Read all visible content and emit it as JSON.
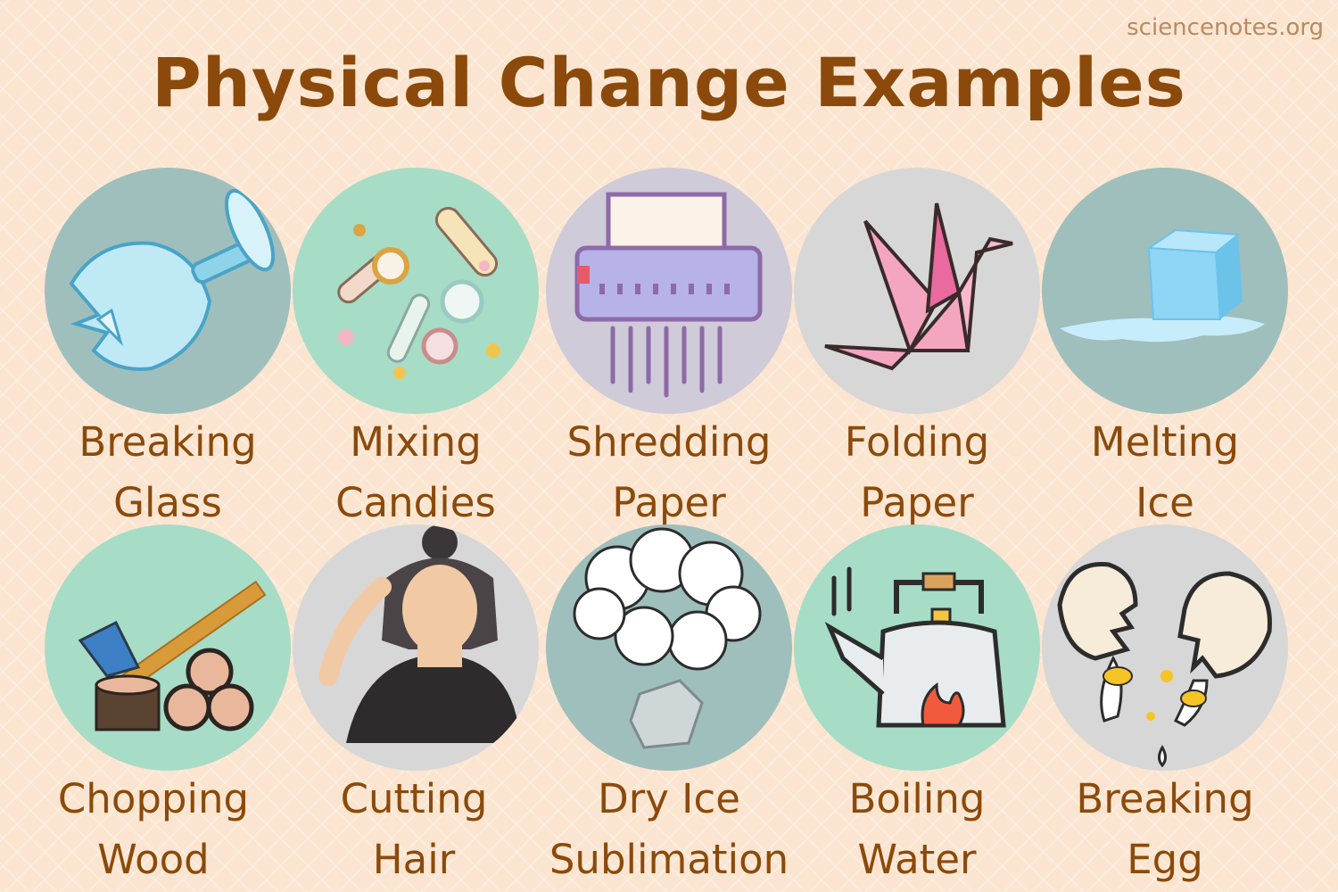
{
  "header": {
    "site": "sciencenotes.org",
    "title": "Physical Change Examples"
  },
  "examples": [
    {
      "line1": "Breaking",
      "line2": "Glass",
      "icon": "broken-glass-icon",
      "bg": "#9fbfbd"
    },
    {
      "line1": "Mixing",
      "line2": "Candies",
      "icon": "candies-icon",
      "bg": "#a7dcc7"
    },
    {
      "line1": "Shredding",
      "line2": "Paper",
      "icon": "paper-shredder-icon",
      "bg": "#cfcbd8"
    },
    {
      "line1": "Folding",
      "line2": "Paper",
      "icon": "origami-crane-icon",
      "bg": "#d7d7d7"
    },
    {
      "line1": "Melting",
      "line2": "Ice",
      "icon": "melting-ice-cube-icon",
      "bg": "#9fbfbd"
    },
    {
      "line1": "Chopping",
      "line2": "Wood",
      "icon": "axe-and-logs-icon",
      "bg": "#a7dcc7"
    },
    {
      "line1": "Cutting",
      "line2": "Hair",
      "icon": "haircut-icon",
      "bg": "#d7d7d7"
    },
    {
      "line1": "Dry Ice",
      "line2": "Sublimation",
      "icon": "dry-ice-vapor-icon",
      "bg": "#9fbfbd"
    },
    {
      "line1": "Boiling",
      "line2": "Water",
      "icon": "boiling-kettle-icon",
      "bg": "#a7dcc7"
    },
    {
      "line1": "Breaking",
      "line2": "Egg",
      "icon": "broken-egg-icon",
      "bg": "#d7d7d7"
    }
  ]
}
